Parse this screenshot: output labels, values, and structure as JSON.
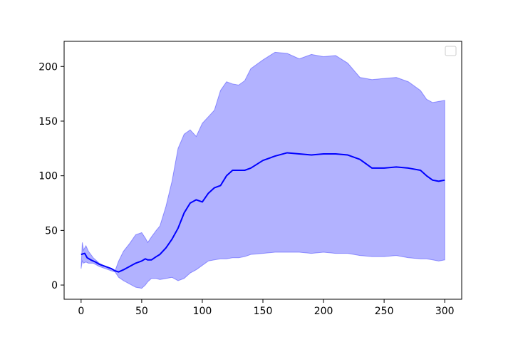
{
  "chart_data": {
    "type": "line",
    "title": "",
    "xlabel": "",
    "ylabel": "",
    "xlim": [
      -14,
      314
    ],
    "ylim": [
      -13,
      223
    ],
    "xticks": [
      0,
      50,
      100,
      150,
      200,
      250,
      300
    ],
    "yticks": [
      0,
      50,
      100,
      150,
      200
    ],
    "grid": false,
    "legend": {
      "placement": "top-right",
      "entries": []
    },
    "colors": {
      "line": "#0000ff",
      "band": "#0000ff",
      "band_opacity": 0.3
    },
    "series": [
      {
        "role": "mean",
        "x": [
          0,
          3,
          5,
          8,
          12,
          15,
          20,
          25,
          28,
          31,
          35,
          40,
          45,
          50,
          53,
          55,
          58,
          62,
          65,
          70,
          75,
          80,
          85,
          90,
          95,
          100,
          105,
          110,
          115,
          120,
          125,
          130,
          135,
          140,
          150,
          160,
          170,
          180,
          190,
          200,
          210,
          220,
          230,
          240,
          250,
          260,
          270,
          280,
          285,
          290,
          295,
          300
        ],
        "y": [
          28,
          29,
          25,
          23,
          21,
          19,
          17,
          15,
          13,
          12,
          14,
          17,
          20,
          22,
          24,
          23,
          23,
          26,
          28,
          34,
          42,
          52,
          66,
          75,
          78,
          76,
          84,
          89,
          91,
          100,
          105,
          105,
          105,
          107,
          114,
          118,
          121,
          120,
          119,
          120,
          120,
          119,
          115,
          107,
          107,
          108,
          107,
          105,
          100,
          96,
          95,
          96
        ]
      },
      {
        "role": "upper",
        "x": [
          0,
          1,
          2,
          4,
          6,
          10,
          15,
          20,
          25,
          28,
          31,
          35,
          40,
          45,
          50,
          53,
          55,
          58,
          62,
          65,
          70,
          75,
          80,
          85,
          90,
          95,
          100,
          105,
          110,
          115,
          120,
          125,
          130,
          135,
          140,
          150,
          160,
          170,
          180,
          190,
          200,
          210,
          220,
          230,
          240,
          250,
          260,
          270,
          280,
          285,
          290,
          295,
          300
        ],
        "y": [
          15,
          39,
          32,
          36,
          31,
          25,
          20,
          17,
          15,
          13,
          22,
          31,
          38,
          46,
          48,
          43,
          39,
          44,
          50,
          54,
          72,
          95,
          125,
          138,
          142,
          136,
          148,
          154,
          160,
          178,
          186,
          184,
          183,
          187,
          198,
          206,
          213,
          212,
          207,
          211,
          209,
          210,
          203,
          190,
          188,
          189,
          190,
          186,
          178,
          170,
          167,
          168,
          169
        ]
      },
      {
        "role": "lower",
        "x": [
          0,
          1,
          2,
          4,
          6,
          10,
          15,
          20,
          25,
          28,
          31,
          35,
          40,
          45,
          50,
          53,
          55,
          58,
          62,
          65,
          70,
          75,
          80,
          85,
          90,
          95,
          100,
          105,
          110,
          115,
          120,
          125,
          130,
          135,
          140,
          150,
          160,
          170,
          180,
          190,
          200,
          210,
          220,
          230,
          240,
          250,
          260,
          270,
          280,
          285,
          290,
          295,
          300
        ],
        "y": [
          15,
          22,
          20,
          21,
          20,
          20,
          17,
          15,
          13,
          12,
          7,
          4,
          1,
          -2,
          -3,
          0,
          3,
          6,
          6,
          5,
          6,
          7,
          4,
          6,
          11,
          14,
          18,
          22,
          23,
          24,
          24,
          25,
          25,
          26,
          28,
          29,
          30,
          30,
          30,
          29,
          30,
          29,
          29,
          27,
          26,
          26,
          27,
          25,
          24,
          24,
          23,
          22,
          23
        ]
      }
    ]
  }
}
